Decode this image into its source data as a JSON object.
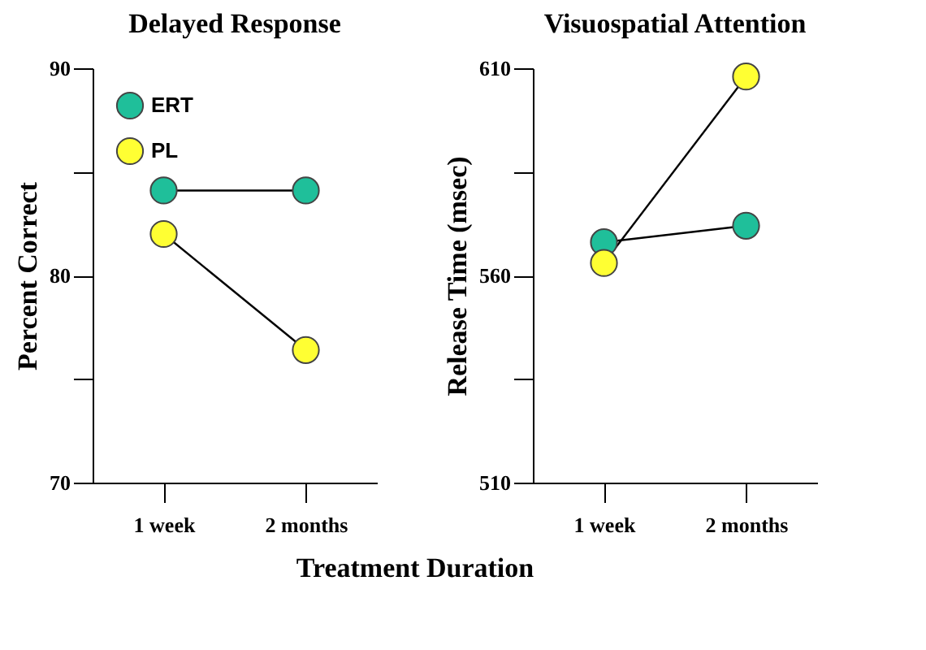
{
  "chart_data": [
    {
      "type": "line",
      "title": "Delayed Response",
      "xlabel": "Treatment Duration",
      "ylabel": "Percent Correct",
      "categories": [
        "1 week",
        "2 months"
      ],
      "series": [
        {
          "name": "ERT",
          "color": "#1fbf9a",
          "values": [
            84.1,
            84.1
          ]
        },
        {
          "name": "PL",
          "color": "#ffff33",
          "values": [
            82,
            76.4
          ]
        }
      ],
      "ylim": [
        70,
        90
      ],
      "yticks": [
        70,
        {
          "value": 75,
          "label": null
        },
        80,
        {
          "value": 85,
          "label": null
        },
        90
      ],
      "marker": "circle",
      "legend": "top left",
      "grid": false
    },
    {
      "type": "line",
      "title": "Visuospatial Attention",
      "ylabel": "Release Time (msec)",
      "categories": [
        "1 week",
        "2 months"
      ],
      "series": [
        {
          "name": "ERT",
          "color": "#1fbf9a",
          "values": [
            568,
            572
          ]
        },
        {
          "name": "PL",
          "color": "#ffff33",
          "values": [
            563,
            608
          ]
        }
      ],
      "ylim": [
        510,
        610
      ],
      "yticks": [
        510,
        {
          "value": 535,
          "label": null
        },
        560,
        {
          "value": 585,
          "label": null
        },
        610
      ],
      "marker": "circle",
      "legend": false,
      "grid": false
    }
  ]
}
